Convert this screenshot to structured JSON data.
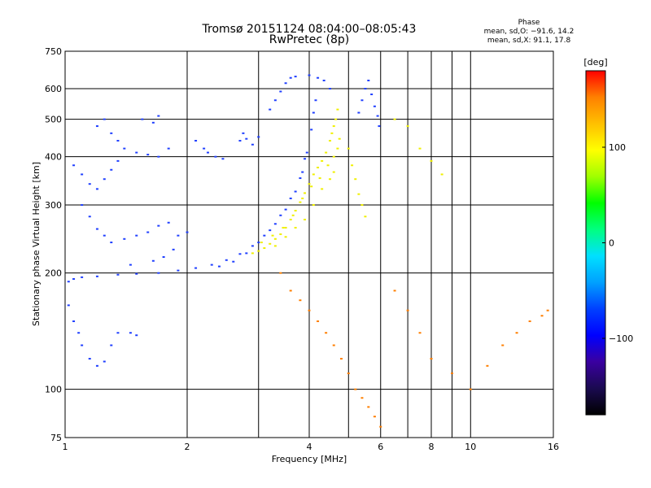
{
  "chart_data": {
    "type": "scatter",
    "title": "Tromsø 20151124 08:04:00–08:05:43",
    "subtitle": "RwPretec (8p)",
    "xlabel": "Frequency [MHz]",
    "ylabel": "Stationary phase Virtual Height [km]",
    "x_scale": "log",
    "y_scale": "log",
    "xlim": [
      1,
      16
    ],
    "ylim": [
      75,
      750
    ],
    "x_ticks": [
      1,
      2,
      4,
      6,
      8,
      10,
      16
    ],
    "x_tick_labels": [
      "1",
      "2",
      "4",
      "6",
      "8",
      "10",
      "16"
    ],
    "x_grid": [
      1,
      2,
      3,
      4,
      5,
      6,
      7,
      8,
      9,
      10,
      16
    ],
    "y_ticks": [
      75,
      100,
      200,
      300,
      400,
      500,
      600,
      750
    ],
    "y_tick_labels": [
      "75",
      "100",
      "200",
      "300",
      "400",
      "500",
      "600",
      "750"
    ],
    "y_grid": [
      100,
      200,
      300,
      400,
      500,
      600
    ],
    "grid": true,
    "phase_info": {
      "heading": "Phase",
      "line_o": "mean, sd,O: −91.6, 14.2",
      "line_x": "mean, sd,X:  91.1, 17.8"
    },
    "colorbar": {
      "label": "[deg]",
      "range": [
        -180,
        180
      ],
      "ticks": [
        100,
        0,
        -100
      ],
      "tick_labels": [
        "100",
        "0",
        "−100"
      ],
      "colors": [
        "#000000",
        "#1a0a50",
        "#3a00a0",
        "#0000ff",
        "#0040ff",
        "#00a0ff",
        "#00e0ff",
        "#00ff80",
        "#00ff00",
        "#a0ff00",
        "#ffff00",
        "#ffc000",
        "#ff8000",
        "#ff0000"
      ]
    },
    "series": [
      {
        "polarity": "O",
        "phase_deg": -91.6,
        "color": "#1f3fff",
        "points": [
          [
            1.02,
            190
          ],
          [
            1.05,
            193
          ],
          [
            1.1,
            195
          ],
          [
            1.2,
            196
          ],
          [
            1.35,
            198
          ],
          [
            1.5,
            199
          ],
          [
            1.7,
            200
          ],
          [
            1.9,
            203
          ],
          [
            2.1,
            206
          ],
          [
            2.3,
            210
          ],
          [
            2.5,
            216
          ],
          [
            2.7,
            224
          ],
          [
            2.9,
            235
          ],
          [
            3.1,
            250
          ],
          [
            3.3,
            268
          ],
          [
            3.5,
            292
          ],
          [
            3.7,
            325
          ],
          [
            3.85,
            365
          ],
          [
            3.95,
            410
          ],
          [
            4.05,
            470
          ],
          [
            4.1,
            520
          ],
          [
            4.15,
            560
          ],
          [
            2.4,
            208
          ],
          [
            2.6,
            214
          ],
          [
            2.8,
            225
          ],
          [
            3.0,
            240
          ],
          [
            3.2,
            258
          ],
          [
            3.4,
            282
          ],
          [
            3.6,
            312
          ],
          [
            3.8,
            352
          ],
          [
            3.9,
            395
          ],
          [
            3.2,
            530
          ],
          [
            3.3,
            560
          ],
          [
            3.4,
            590
          ],
          [
            3.5,
            620
          ],
          [
            3.6,
            640
          ],
          [
            3.7,
            645
          ],
          [
            4.0,
            650
          ],
          [
            4.2,
            640
          ],
          [
            4.35,
            630
          ],
          [
            4.5,
            600
          ],
          [
            5.3,
            520
          ],
          [
            5.4,
            560
          ],
          [
            5.5,
            600
          ],
          [
            5.6,
            630
          ],
          [
            5.7,
            580
          ],
          [
            5.8,
            540
          ],
          [
            5.9,
            510
          ],
          [
            5.95,
            480
          ],
          [
            1.05,
            380
          ],
          [
            1.1,
            360
          ],
          [
            1.15,
            340
          ],
          [
            1.2,
            330
          ],
          [
            1.25,
            350
          ],
          [
            1.3,
            370
          ],
          [
            1.35,
            390
          ],
          [
            1.1,
            300
          ],
          [
            1.15,
            280
          ],
          [
            1.2,
            260
          ],
          [
            1.25,
            250
          ],
          [
            1.3,
            240
          ],
          [
            1.4,
            245
          ],
          [
            1.5,
            250
          ],
          [
            1.6,
            255
          ],
          [
            1.7,
            265
          ],
          [
            1.8,
            270
          ],
          [
            1.2,
            480
          ],
          [
            1.25,
            500
          ],
          [
            1.3,
            460
          ],
          [
            1.35,
            440
          ],
          [
            1.4,
            420
          ],
          [
            1.5,
            410
          ],
          [
            1.6,
            405
          ],
          [
            1.7,
            400
          ],
          [
            1.8,
            420
          ],
          [
            1.55,
            500
          ],
          [
            1.65,
            490
          ],
          [
            1.7,
            510
          ],
          [
            1.9,
            250
          ],
          [
            2.0,
            255
          ],
          [
            1.85,
            230
          ],
          [
            1.75,
            220
          ],
          [
            1.65,
            215
          ],
          [
            1.45,
            210
          ],
          [
            2.1,
            440
          ],
          [
            2.2,
            420
          ],
          [
            2.25,
            410
          ],
          [
            2.35,
            400
          ],
          [
            2.45,
            395
          ],
          [
            2.7,
            440
          ],
          [
            2.75,
            460
          ],
          [
            2.8,
            445
          ],
          [
            2.9,
            430
          ],
          [
            3.0,
            450
          ],
          [
            1.02,
            165
          ],
          [
            1.05,
            150
          ],
          [
            1.08,
            140
          ],
          [
            1.1,
            130
          ],
          [
            1.15,
            120
          ],
          [
            1.2,
            115
          ],
          [
            1.25,
            118
          ],
          [
            1.3,
            130
          ],
          [
            1.35,
            140
          ],
          [
            1.45,
            140
          ],
          [
            1.5,
            138
          ]
        ]
      },
      {
        "polarity": "X",
        "phase_deg": 91.1,
        "color": "#f0f000",
        "points": [
          [
            2.9,
            225
          ],
          [
            3.0,
            228
          ],
          [
            3.1,
            232
          ],
          [
            3.2,
            238
          ],
          [
            3.3,
            245
          ],
          [
            3.4,
            252
          ],
          [
            3.5,
            262
          ],
          [
            3.6,
            275
          ],
          [
            3.7,
            290
          ],
          [
            3.8,
            305
          ],
          [
            3.9,
            322
          ],
          [
            4.0,
            340
          ],
          [
            4.1,
            360
          ],
          [
            4.2,
            375
          ],
          [
            4.3,
            390
          ],
          [
            4.4,
            410
          ],
          [
            4.5,
            440
          ],
          [
            4.55,
            460
          ],
          [
            4.6,
            480
          ],
          [
            4.65,
            500
          ],
          [
            4.7,
            530
          ],
          [
            3.05,
            240
          ],
          [
            3.25,
            250
          ],
          [
            3.45,
            262
          ],
          [
            3.65,
            282
          ],
          [
            3.85,
            312
          ],
          [
            4.05,
            335
          ],
          [
            4.25,
            352
          ],
          [
            4.45,
            380
          ],
          [
            4.6,
            400
          ],
          [
            4.7,
            420
          ],
          [
            3.3,
            235
          ],
          [
            3.5,
            248
          ],
          [
            3.7,
            262
          ],
          [
            3.9,
            275
          ],
          [
            4.1,
            300
          ],
          [
            4.3,
            330
          ],
          [
            4.5,
            350
          ],
          [
            4.6,
            365
          ],
          [
            4.75,
            445
          ],
          [
            5.0,
            420
          ],
          [
            5.1,
            380
          ],
          [
            5.2,
            350
          ],
          [
            5.3,
            320
          ],
          [
            5.4,
            300
          ],
          [
            5.5,
            280
          ],
          [
            6.5,
            500
          ],
          [
            7.0,
            480
          ],
          [
            7.5,
            420
          ],
          [
            8.0,
            390
          ],
          [
            8.5,
            360
          ]
        ]
      },
      {
        "polarity": "scattered",
        "color": "#ff7f00",
        "points": [
          [
            3.4,
            200
          ],
          [
            3.6,
            180
          ],
          [
            3.8,
            170
          ],
          [
            4.0,
            160
          ],
          [
            4.2,
            150
          ],
          [
            4.4,
            140
          ],
          [
            4.6,
            130
          ],
          [
            4.8,
            120
          ],
          [
            5.0,
            110
          ],
          [
            5.2,
            100
          ],
          [
            5.4,
            95
          ],
          [
            5.6,
            90
          ],
          [
            5.8,
            85
          ],
          [
            6.0,
            80
          ],
          [
            6.5,
            180
          ],
          [
            7.0,
            160
          ],
          [
            7.5,
            140
          ],
          [
            8.0,
            120
          ],
          [
            9.0,
            110
          ],
          [
            10.0,
            100
          ],
          [
            11.0,
            115
          ],
          [
            12.0,
            130
          ],
          [
            13.0,
            140
          ],
          [
            14.0,
            150
          ],
          [
            15.0,
            155
          ],
          [
            15.5,
            160
          ]
        ]
      }
    ]
  }
}
